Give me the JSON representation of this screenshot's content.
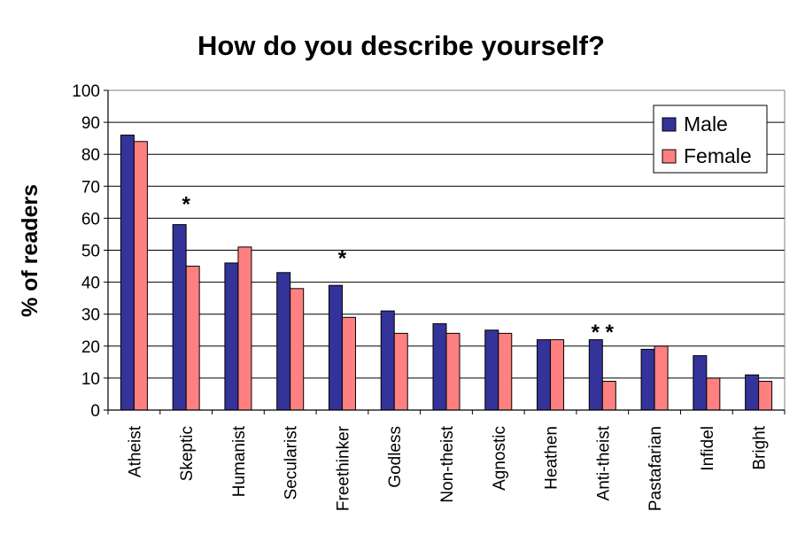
{
  "chart_data": {
    "type": "bar",
    "title": "How do you describe yourself?",
    "xlabel": "",
    "ylabel": "% of readers",
    "ylim": [
      0,
      100
    ],
    "yticks": [
      0,
      10,
      20,
      30,
      40,
      50,
      60,
      70,
      80,
      90,
      100
    ],
    "grid": true,
    "legend_position": "top-right",
    "categories": [
      "Atheist",
      "Skeptic",
      "Humanist",
      "Secularist",
      "Freethinker",
      "Godless",
      "Non-theist",
      "Agnostic",
      "Heathen",
      "Anti-theist",
      "Pastafarian",
      "Infidel",
      "Bright"
    ],
    "series": [
      {
        "name": "Male",
        "color": "#333399",
        "values": [
          86,
          58,
          46,
          43,
          39,
          31,
          27,
          25,
          22,
          22,
          19,
          17,
          11
        ]
      },
      {
        "name": "Female",
        "color": "#ff8080",
        "values": [
          84,
          45,
          51,
          38,
          29,
          24,
          24,
          24,
          22,
          9,
          20,
          10,
          9
        ]
      }
    ],
    "annotations": [
      {
        "text": "*",
        "category": "Skeptic",
        "y": 65
      },
      {
        "text": "*",
        "category": "Freethinker",
        "y": 48
      },
      {
        "text": "* *",
        "category": "Anti-theist",
        "y": 25
      }
    ]
  }
}
